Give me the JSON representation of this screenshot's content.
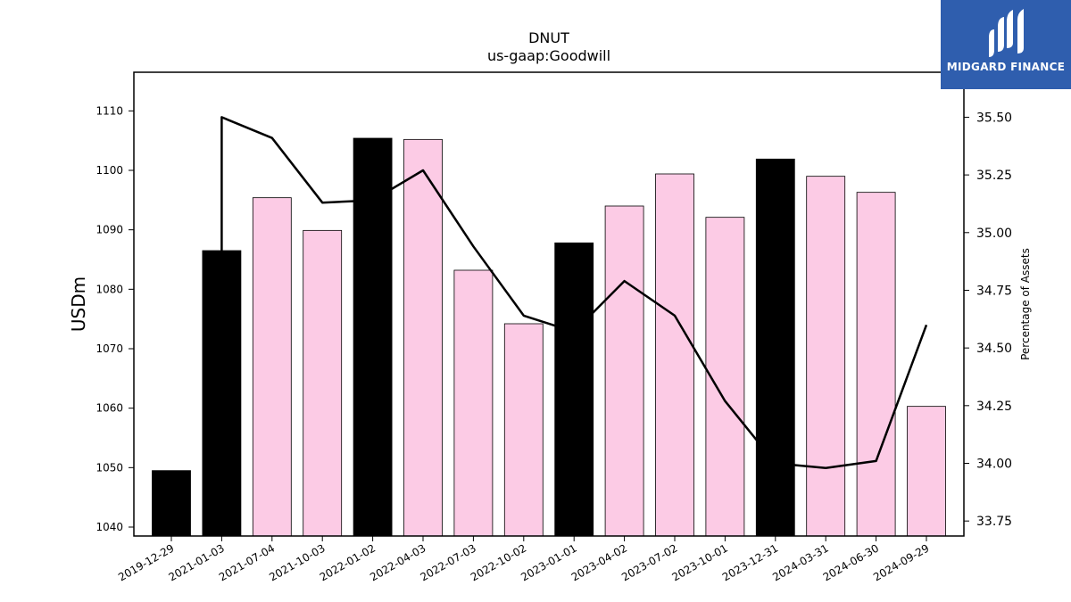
{
  "logo": {
    "text": "MIDGARD FINANCE",
    "icon": "midgard-logo-icon",
    "background": "#2f5eae"
  },
  "colors": {
    "highlight_bar": "#000000",
    "bar": "#fccbe5",
    "line": "#000000"
  },
  "chart_data": {
    "type": "bar",
    "title": "DNUT",
    "subtitle": "us-gaap:Goodwill",
    "ylabel": "USDm",
    "y2label": "Percentage of Assets",
    "ylim": [
      1038.5,
      1116.5
    ],
    "y2lim": [
      33.685,
      35.695
    ],
    "yticks": [
      1040,
      1050,
      1060,
      1070,
      1080,
      1090,
      1100,
      1110
    ],
    "y2ticks": [
      "33.75",
      "34.00",
      "34.25",
      "34.50",
      "34.75",
      "35.00",
      "35.25",
      "35.50"
    ],
    "categories": [
      "2019-12-29",
      "2021-01-03",
      "2021-07-04",
      "2021-10-03",
      "2022-01-02",
      "2022-04-03",
      "2022-07-03",
      "2022-10-02",
      "2023-01-01",
      "2023-04-02",
      "2023-07-02",
      "2023-10-01",
      "2023-12-31",
      "2024-03-31",
      "2024-06-30",
      "2024-09-29"
    ],
    "values": [
      1049.5,
      1086.5,
      1095.4,
      1089.9,
      1105.4,
      1105.2,
      1083.2,
      1074.2,
      1087.8,
      1094.0,
      1099.4,
      1092.1,
      1101.9,
      1099.0,
      1096.3,
      1060.3
    ],
    "highlight": [
      true,
      true,
      false,
      false,
      true,
      false,
      false,
      false,
      true,
      false,
      false,
      false,
      true,
      false,
      false,
      false
    ],
    "line_series": {
      "values": [
        null,
        35.5,
        35.41,
        35.13,
        35.14,
        35.27,
        34.94,
        34.64,
        34.57,
        34.79,
        34.64,
        34.27,
        34.0,
        33.98,
        34.01,
        34.6
      ]
    },
    "grid": false
  }
}
